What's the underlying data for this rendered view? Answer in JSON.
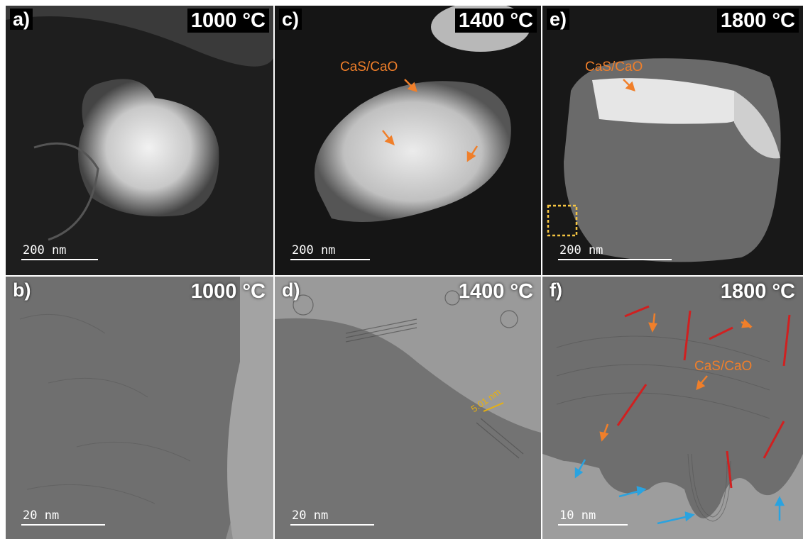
{
  "panels": {
    "a": {
      "label": "a)",
      "temperature": "1000 °C",
      "scale": "200  nm"
    },
    "b": {
      "label": "b)",
      "temperature": "1000 °C",
      "scale": "20  nm"
    },
    "c": {
      "label": "c)",
      "temperature": "1400 °C",
      "scale": "200  nm",
      "annotation": "CaS/CaO"
    },
    "d": {
      "label": "d)",
      "temperature": "1400 °C",
      "scale": "20  nm",
      "measurement": "5.01 nm"
    },
    "e": {
      "label": "e)",
      "temperature": "1800 °C",
      "scale": "200  nm",
      "annotation": "CaS/CaO"
    },
    "f": {
      "label": "f)",
      "temperature": "1800 °C",
      "scale": "10  nm",
      "annotation": "CaS/CaO"
    }
  },
  "colors": {
    "annotation_orange": "#f07f2a",
    "measurement_yellow": "#e8b10f",
    "fringe_red": "#d02020",
    "edge_blue": "#2aa3e0",
    "roi_box": "#f5c542"
  }
}
